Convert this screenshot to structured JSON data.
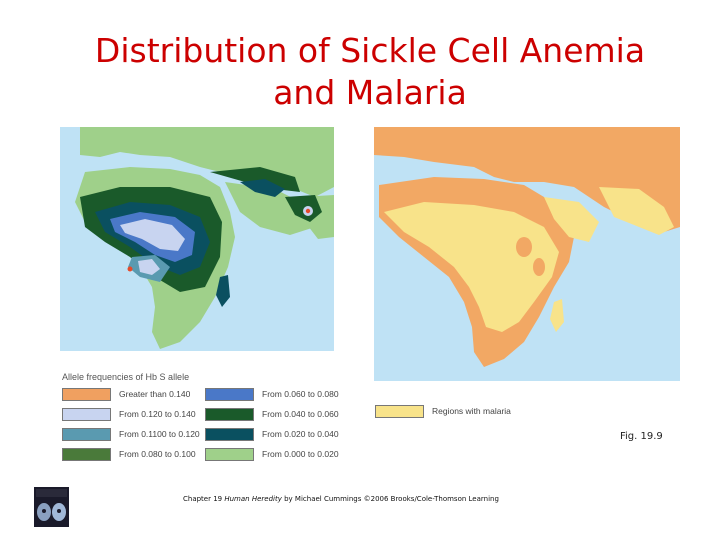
{
  "title": {
    "line1": "Distribution of Sickle Cell Anemia",
    "line2": "and Malaria"
  },
  "legend": {
    "heading": "Allele frequencies of Hb S allele",
    "items": [
      {
        "label": "Greater than 0.140",
        "color": "#f0a060"
      },
      {
        "label": "From 0.120 to 0.140",
        "color": "#c8d4f0"
      },
      {
        "label": "From 0.1100 to 0.120",
        "color": "#5a9ab0"
      },
      {
        "label": "From 0.080 to 0.100",
        "color": "#4a7a3a"
      },
      {
        "label": "From 0.060 to 0.080",
        "color": "#4a78c8"
      },
      {
        "label": "From 0.040 to 0.060",
        "color": "#1a5a2a"
      },
      {
        "label": "From 0.020 to 0.040",
        "color": "#0a5060"
      },
      {
        "label": "From 0.000 to 0.020",
        "color": "#9fd08a"
      }
    ],
    "malaria": {
      "label": "Regions with malaria",
      "color": "#f8e38a"
    }
  },
  "figure_label": "Fig. 19.9",
  "credit": {
    "chapter": "Chapter 19",
    "book": "Human Heredity",
    "rest": "by Michael Cummings ©2006 Brooks/Cole-Thomson Learning"
  },
  "colors": {
    "title": "#cc0000",
    "ocean": "#bfe2f5",
    "land_other": "#f2a864"
  }
}
